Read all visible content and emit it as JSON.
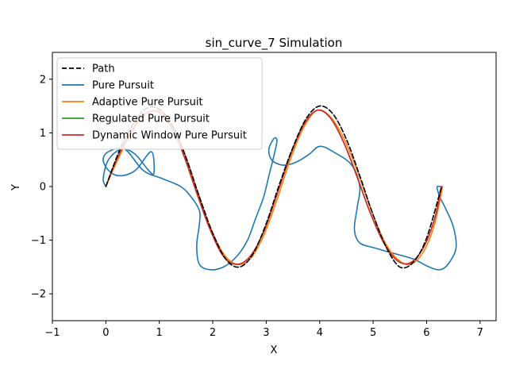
{
  "chart_data": {
    "type": "line",
    "title": "sin_curve_7 Simulation",
    "xlabel": "X",
    "ylabel": "Y",
    "xlim": [
      -1,
      7.3
    ],
    "ylim": [
      -2.5,
      2.5
    ],
    "xticks": [
      -1,
      0,
      1,
      2,
      3,
      4,
      5,
      6,
      7
    ],
    "yticks": [
      -2,
      -1,
      0,
      1,
      2
    ],
    "grid": false,
    "legend_position": "top-left",
    "series": [
      {
        "name": "Path",
        "color": "#000000",
        "dash": true,
        "x": [
          0,
          0.25,
          0.5,
          0.75,
          1.0,
          1.25,
          1.5,
          1.75,
          2.0,
          2.25,
          2.5,
          2.75,
          3.0,
          3.25,
          3.5,
          3.75,
          4.0,
          4.25,
          4.5,
          4.75,
          5.0,
          5.25,
          5.5,
          5.75,
          6.0,
          6.28
        ],
        "y": [
          0,
          0.66,
          1.15,
          1.45,
          1.44,
          1.13,
          0.54,
          -0.19,
          -0.87,
          -1.36,
          -1.5,
          -1.26,
          -0.69,
          0.05,
          0.73,
          1.27,
          1.5,
          1.35,
          0.88,
          0.2,
          -0.53,
          -1.14,
          -1.5,
          -1.41,
          -0.96,
          0.0
        ]
      },
      {
        "name": "Pure Pursuit",
        "color": "#1f77b4",
        "dash": false,
        "x": [
          0,
          -0.05,
          0.05,
          0.3,
          0.55,
          0.8,
          0.9,
          0.85,
          0.55,
          0.25,
          0.05,
          -0.05,
          0.05,
          0.35,
          0.7,
          1.05,
          1.4,
          1.6,
          1.75,
          1.75,
          1.7,
          1.75,
          1.95,
          2.2,
          2.45,
          2.65,
          2.8,
          2.95,
          3.05,
          3.15,
          3.2,
          3.15,
          3.05,
          3.1,
          3.3,
          3.55,
          3.8,
          4.0,
          4.25,
          4.6,
          4.75,
          4.7,
          4.65,
          4.75,
          5.05,
          5.4,
          5.75,
          6.05,
          6.25,
          6.4,
          6.55,
          6.5,
          6.35,
          6.25,
          6.2,
          6.2,
          6.25,
          6.28
        ],
        "y": [
          0,
          0.15,
          0.5,
          0.7,
          0.6,
          0.3,
          0.25,
          0.65,
          0.3,
          0.2,
          0.3,
          0.5,
          0.65,
          0.7,
          0.3,
          0.15,
          0.0,
          -0.2,
          -0.45,
          -0.7,
          -1.1,
          -1.45,
          -1.55,
          -1.5,
          -1.3,
          -1.0,
          -0.6,
          -0.2,
          0.2,
          0.6,
          0.85,
          0.9,
          0.7,
          0.5,
          0.4,
          0.45,
          0.6,
          0.75,
          0.65,
          0.4,
          0.0,
          -0.4,
          -0.8,
          -1.05,
          -1.15,
          -1.25,
          -1.35,
          -1.5,
          -1.55,
          -1.45,
          -1.15,
          -0.75,
          -0.4,
          -0.2,
          -0.05,
          0.0,
          0.0,
          0.0
        ]
      },
      {
        "name": "Adaptive Pure Pursuit",
        "color": "#ff7f0e",
        "dash": false,
        "x": [
          0,
          0.2,
          0.45,
          0.7,
          0.95,
          1.2,
          1.45,
          1.7,
          1.95,
          2.2,
          2.45,
          2.7,
          2.95,
          3.2,
          3.45,
          3.7,
          3.95,
          4.2,
          4.45,
          4.7,
          4.95,
          5.2,
          5.45,
          5.7,
          5.95,
          6.15,
          6.3
        ],
        "y": [
          0,
          0.45,
          0.95,
          1.3,
          1.42,
          1.2,
          0.68,
          -0.05,
          -0.75,
          -1.25,
          -1.45,
          -1.35,
          -0.92,
          -0.25,
          0.5,
          1.1,
          1.42,
          1.3,
          0.9,
          0.3,
          -0.4,
          -1.0,
          -1.35,
          -1.45,
          -1.2,
          -0.7,
          0.0
        ]
      },
      {
        "name": "Regulated Pure Pursuit",
        "color": "#2ca02c",
        "dash": false,
        "x": [
          0,
          0.2,
          0.45,
          0.7,
          0.95,
          1.2,
          1.45,
          1.7,
          1.95,
          2.2,
          2.45,
          2.7,
          2.95,
          3.2,
          3.45,
          3.7,
          3.95,
          4.2,
          4.45,
          4.7,
          4.95,
          5.2,
          5.45,
          5.7,
          5.95,
          6.15,
          6.28
        ],
        "y": [
          0,
          0.5,
          0.98,
          1.33,
          1.4,
          1.15,
          0.6,
          -0.12,
          -0.8,
          -1.3,
          -1.45,
          -1.3,
          -0.85,
          -0.15,
          0.58,
          1.15,
          1.42,
          1.28,
          0.82,
          0.18,
          -0.5,
          -1.05,
          -1.38,
          -1.42,
          -1.12,
          -0.6,
          0.0
        ]
      },
      {
        "name": "Dynamic Window Pure Pursuit",
        "color": "#d62728",
        "dash": false,
        "x": [
          0,
          0.2,
          0.45,
          0.7,
          0.95,
          1.2,
          1.45,
          1.7,
          1.95,
          2.2,
          2.45,
          2.7,
          2.95,
          3.2,
          3.45,
          3.7,
          3.95,
          4.2,
          4.45,
          4.7,
          4.95,
          5.2,
          5.45,
          5.7,
          5.95,
          6.15,
          6.28
        ],
        "y": [
          0,
          0.5,
          0.98,
          1.33,
          1.4,
          1.15,
          0.6,
          -0.12,
          -0.8,
          -1.3,
          -1.45,
          -1.3,
          -0.85,
          -0.15,
          0.58,
          1.15,
          1.42,
          1.28,
          0.82,
          0.18,
          -0.5,
          -1.05,
          -1.38,
          -1.42,
          -1.12,
          -0.6,
          0.0
        ]
      }
    ]
  }
}
